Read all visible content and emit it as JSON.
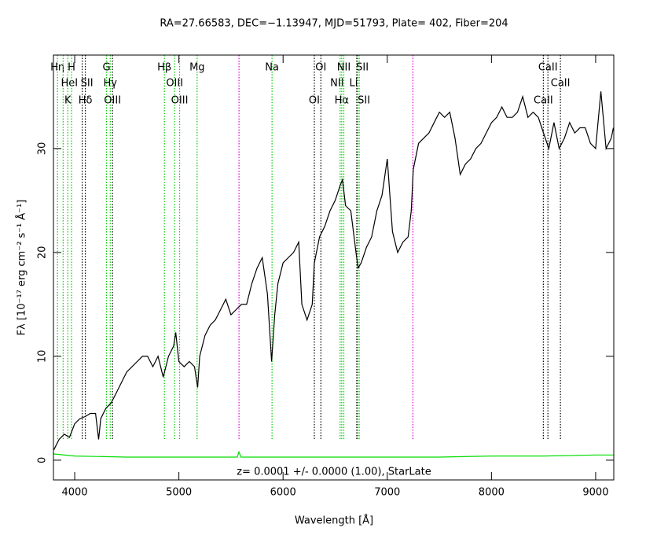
{
  "chart_data": {
    "type": "line",
    "title": "RA=27.66583, DEC=−1.13947, MJD=51793, Plate= 402, Fiber=204",
    "xlabel": "Wavelength [Å]",
    "ylabel": "Fλ [10⁻¹⁷ erg cm⁻² s⁻¹ Å⁻¹]",
    "annotation": "z= 0.0001 +/- 0.0000 (1.00), StarLate",
    "xlim": [
      3796,
      9174
    ],
    "ylim": [
      -1.9,
      39
    ],
    "xticks": [
      4000,
      5000,
      6000,
      7000,
      8000,
      9000
    ],
    "yticks": [
      0,
      10,
      20,
      30
    ],
    "series": [
      {
        "color": "#000000",
        "x": [
          3800,
          3850,
          3900,
          3950,
          4000,
          4050,
          4100,
          4150,
          4200,
          4230,
          4250,
          4300,
          4350,
          4400,
          4450,
          4500,
          4550,
          4600,
          4650,
          4700,
          4750,
          4800,
          4850,
          4900,
          4950,
          4970,
          5000,
          5050,
          5100,
          5150,
          5180,
          5200,
          5250,
          5300,
          5350,
          5400,
          5450,
          5500,
          5550,
          5600,
          5650,
          5700,
          5750,
          5800,
          5850,
          5890,
          5920,
          5950,
          6000,
          6050,
          6100,
          6150,
          6180,
          6230,
          6280,
          6300,
          6350,
          6400,
          6450,
          6500,
          6550,
          6570,
          6600,
          6650,
          6700,
          6720,
          6750,
          6800,
          6850,
          6900,
          6950,
          7000,
          7050,
          7100,
          7150,
          7200,
          7230,
          7250,
          7300,
          7350,
          7400,
          7450,
          7500,
          7550,
          7600,
          7650,
          7700,
          7750,
          7800,
          7850,
          7900,
          7950,
          8000,
          8050,
          8100,
          8150,
          8200,
          8250,
          8300,
          8350,
          8400,
          8450,
          8500,
          8550,
          8600,
          8650,
          8700,
          8750,
          8800,
          8850,
          8900,
          8950,
          9000,
          9050,
          9100,
          9150,
          9170
        ],
        "values": [
          1,
          2,
          2.5,
          2.2,
          3.5,
          4,
          4.2,
          4.5,
          4.5,
          2,
          4,
          5,
          5.5,
          6.5,
          7.5,
          8.5,
          9,
          9.5,
          10,
          10,
          9,
          10,
          8,
          10,
          11,
          12.3,
          9.5,
          9,
          9.5,
          9,
          7,
          10,
          12,
          13,
          13.5,
          14.5,
          15.5,
          14,
          14.5,
          15,
          15,
          17,
          18.5,
          19.5,
          16,
          9.5,
          14,
          17,
          19,
          19.5,
          20,
          21,
          15,
          13.5,
          15,
          19,
          21.5,
          22.5,
          24,
          25,
          26.5,
          27,
          24.5,
          24,
          20,
          18.5,
          19,
          20.5,
          21.5,
          24,
          25.5,
          29,
          22,
          20,
          21,
          21.5,
          24,
          28,
          30.5,
          31,
          31.5,
          32.5,
          33.5,
          33,
          33.5,
          31,
          27.5,
          28.5,
          29,
          30,
          30.5,
          31.5,
          32.5,
          33,
          34,
          33,
          33,
          33.5,
          35,
          33,
          33.5,
          33,
          31.5,
          30,
          32.5,
          30,
          31,
          32.5,
          31.5,
          32,
          32,
          30.5,
          30,
          35.5,
          30,
          31,
          32
        ]
      },
      {
        "color": "#00dd00",
        "x": [
          3800,
          4000,
          4500,
          5000,
          5500,
          5560,
          5577,
          5595,
          6000,
          6500,
          7000,
          7500,
          8000,
          8500,
          9000,
          9170
        ],
        "values": [
          0.6,
          0.4,
          0.3,
          0.3,
          0.3,
          0.3,
          0.8,
          0.3,
          0.3,
          0.3,
          0.3,
          0.3,
          0.4,
          0.4,
          0.5,
          0.5
        ]
      }
    ],
    "markers": [
      {
        "wavelength": 3835,
        "label": "Hη",
        "color": "#00cc00"
      },
      {
        "wavelength": 3889,
        "label": "HeI",
        "color": "#00cc00"
      },
      {
        "wavelength": 3934,
        "label": "K",
        "color": "#00cc00"
      },
      {
        "wavelength": 3970,
        "label": "H",
        "color": "#00cc00"
      },
      {
        "wavelength": 4072,
        "label": "SII",
        "color": "#000000"
      },
      {
        "wavelength": 4102,
        "label": "Hδ",
        "color": "#000000"
      },
      {
        "wavelength": 4305,
        "label": "G",
        "color": "#00cc00"
      },
      {
        "wavelength": 4341,
        "label": "Hγ",
        "color": "#00cc00"
      },
      {
        "wavelength": 4363,
        "label": "OIII",
        "color": "#000000"
      },
      {
        "wavelength": 4861,
        "label": "Hβ",
        "color": "#00cc00"
      },
      {
        "wavelength": 4959,
        "label": "OIII",
        "color": "#00cc00"
      },
      {
        "wavelength": 5007,
        "label": "OIII",
        "color": "#00cc00"
      },
      {
        "wavelength": 5175,
        "label": "Mg",
        "color": "#00cc00"
      },
      {
        "wavelength": 5577,
        "color": "#dd00dd"
      },
      {
        "wavelength": 5894,
        "label": "Na",
        "color": "#00cc00"
      },
      {
        "wavelength": 6300,
        "label": "OI",
        "color": "#000000"
      },
      {
        "wavelength": 6363,
        "label": "OI",
        "color": "#000000"
      },
      {
        "wavelength": 6548,
        "label": "NII",
        "color": "#00cc00"
      },
      {
        "wavelength": 6563,
        "label": "Hα",
        "color": "#00cc00"
      },
      {
        "wavelength": 6583,
        "label": "NII",
        "color": "#00cc00"
      },
      {
        "wavelength": 6707,
        "label": "Li",
        "color": "#000000"
      },
      {
        "wavelength": 6716,
        "label": "SII",
        "color": "#00cc00"
      },
      {
        "wavelength": 6731,
        "label": "SII",
        "color": "#00cc00"
      },
      {
        "wavelength": 7246,
        "color": "#dd00dd"
      },
      {
        "wavelength": 8498,
        "label": "CaII",
        "color": "#000000"
      },
      {
        "wavelength": 8542,
        "label": "CaII",
        "color": "#000000"
      },
      {
        "wavelength": 8662,
        "label": "CaII",
        "color": "#000000"
      }
    ]
  }
}
